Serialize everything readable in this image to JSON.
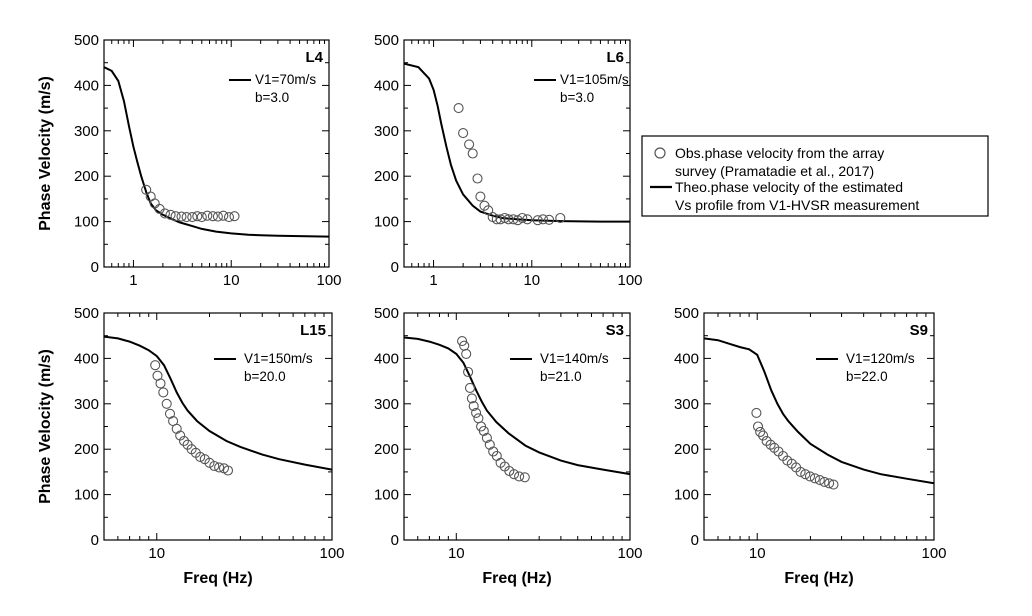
{
  "chart_data": [
    {
      "type": "line",
      "panel_label": "L4",
      "annotation": [
        "V1=70m/s",
        "b=3.0"
      ],
      "xlabel": "",
      "ylabel": "Phase Velocity (m/s)",
      "xscale": "log",
      "xlim": [
        0.5,
        100
      ],
      "ylim": [
        0,
        500
      ],
      "xticks": [
        1,
        10,
        100
      ],
      "xtick_labels": [
        "1",
        "10",
        "100"
      ],
      "yticks": [
        0,
        100,
        200,
        300,
        400,
        500
      ],
      "ytick_labels": [
        "0",
        "100",
        "200",
        "300",
        "400",
        "500"
      ],
      "series": [
        {
          "role": "theoretical",
          "style": "line",
          "x": [
            0.5,
            0.6,
            0.7,
            0.8,
            0.9,
            1.0,
            1.1,
            1.2,
            1.35,
            1.5,
            1.7,
            2.0,
            2.5,
            3,
            4,
            5,
            7,
            10,
            15,
            20,
            30,
            50,
            100
          ],
          "y": [
            440,
            432,
            410,
            365,
            310,
            265,
            230,
            200,
            165,
            140,
            125,
            115,
            105,
            98,
            90,
            84,
            78,
            74,
            71,
            70,
            69,
            68,
            67
          ]
        },
        {
          "role": "observed",
          "style": "markers",
          "x": [
            1.35,
            1.5,
            1.65,
            1.85,
            2.1,
            2.4,
            2.7,
            3.1,
            3.5,
            4,
            4.5,
            5,
            5.7,
            6.5,
            7.3,
            8.3,
            9.5,
            10.8
          ],
          "y": [
            170,
            155,
            140,
            128,
            118,
            115,
            112,
            111,
            110,
            110,
            112,
            110,
            113,
            112,
            111,
            113,
            110,
            112
          ]
        }
      ]
    },
    {
      "type": "line",
      "panel_label": "L6",
      "annotation": [
        "V1=105m/s",
        "b=3.0"
      ],
      "xlabel": "",
      "ylabel": "",
      "xscale": "log",
      "xlim": [
        0.5,
        100
      ],
      "ylim": [
        0,
        500
      ],
      "xticks": [
        1,
        10,
        100
      ],
      "xtick_labels": [
        "1",
        "10",
        "100"
      ],
      "yticks": [
        0,
        100,
        200,
        300,
        400,
        500
      ],
      "ytick_labels": [
        "0",
        "100",
        "200",
        "300",
        "400",
        "500"
      ],
      "series": [
        {
          "role": "theoretical",
          "style": "line",
          "x": [
            0.5,
            0.7,
            0.9,
            1.0,
            1.1,
            1.2,
            1.35,
            1.5,
            1.7,
            2.0,
            2.5,
            3,
            4,
            5,
            7,
            10,
            20,
            50,
            100
          ],
          "y": [
            448,
            440,
            415,
            390,
            355,
            315,
            265,
            225,
            190,
            160,
            135,
            122,
            113,
            108,
            105,
            103,
            101,
            100,
            100
          ]
        },
        {
          "role": "observed",
          "style": "markers",
          "x": [
            1.8,
            2.0,
            2.3,
            2.5,
            2.8,
            3.0,
            3.3,
            3.6,
            4.0,
            4.4,
            4.8,
            5.3,
            5.8,
            6.5,
            7.2,
            8.0,
            9.0,
            11.5,
            13.0,
            15.0,
            19.5
          ],
          "y": [
            350,
            295,
            270,
            250,
            195,
            155,
            135,
            125,
            110,
            105,
            105,
            108,
            105,
            105,
            103,
            108,
            105,
            103,
            105,
            104,
            108
          ]
        }
      ]
    },
    {
      "type": "line",
      "panel_label": "L15",
      "annotation": [
        "V1=150m/s",
        "b=20.0"
      ],
      "xlabel": "Freq (Hz)",
      "ylabel": "Phase Velocity (m/s)",
      "xscale": "log",
      "xlim": [
        5,
        100
      ],
      "ylim": [
        0,
        500
      ],
      "xticks": [
        10,
        100
      ],
      "xtick_labels": [
        "10",
        "100"
      ],
      "yticks": [
        0,
        100,
        200,
        300,
        400,
        500
      ],
      "ytick_labels": [
        "0",
        "100",
        "200",
        "300",
        "400",
        "500"
      ],
      "series": [
        {
          "role": "theoretical",
          "style": "line",
          "x": [
            5,
            6,
            7,
            8,
            9,
            10,
            11,
            12,
            13,
            14,
            15,
            17,
            20,
            25,
            30,
            40,
            50,
            70,
            100
          ],
          "y": [
            448,
            444,
            437,
            428,
            418,
            405,
            385,
            355,
            325,
            302,
            285,
            262,
            240,
            218,
            205,
            188,
            178,
            166,
            155
          ]
        },
        {
          "role": "observed",
          "style": "markers",
          "x": [
            9.8,
            10.1,
            10.5,
            10.9,
            11.4,
            11.9,
            12.4,
            13.0,
            13.6,
            14.3,
            15.0,
            15.8,
            16.7,
            17.7,
            18.8,
            20.0,
            21.3,
            22.7,
            24.2,
            25.5
          ],
          "y": [
            385,
            362,
            345,
            325,
            300,
            278,
            262,
            245,
            230,
            218,
            210,
            200,
            192,
            183,
            178,
            170,
            163,
            160,
            158,
            153
          ]
        }
      ]
    },
    {
      "type": "line",
      "panel_label": "S3",
      "annotation": [
        "V1=140m/s",
        "b=21.0"
      ],
      "xlabel": "Freq (Hz)",
      "ylabel": "",
      "xscale": "log",
      "xlim": [
        5,
        100
      ],
      "ylim": [
        0,
        500
      ],
      "xticks": [
        10,
        100
      ],
      "xtick_labels": [
        "10",
        "100"
      ],
      "yticks": [
        0,
        100,
        200,
        300,
        400,
        500
      ],
      "ytick_labels": [
        "0",
        "100",
        "200",
        "300",
        "400",
        "500"
      ],
      "series": [
        {
          "role": "theoretical",
          "style": "line",
          "x": [
            5,
            6,
            7,
            8,
            9,
            10,
            11,
            12,
            13,
            14,
            15,
            17,
            20,
            25,
            30,
            40,
            50,
            70,
            100
          ],
          "y": [
            446,
            443,
            437,
            430,
            422,
            410,
            390,
            360,
            330,
            305,
            285,
            260,
            235,
            208,
            193,
            175,
            165,
            155,
            145
          ]
        },
        {
          "role": "observed",
          "style": "markers",
          "x": [
            10.8,
            11.1,
            11.4,
            11.7,
            12.0,
            12.3,
            12.6,
            13.0,
            13.4,
            13.9,
            14.4,
            15.0,
            15.6,
            16.3,
            17.1,
            18.0,
            19.0,
            20.2,
            21.5,
            23.0,
            24.8
          ],
          "y": [
            438,
            428,
            410,
            370,
            335,
            312,
            295,
            280,
            268,
            250,
            240,
            225,
            210,
            195,
            185,
            170,
            162,
            152,
            145,
            140,
            138
          ]
        }
      ]
    },
    {
      "type": "line",
      "panel_label": "S9",
      "annotation": [
        "V1=120m/s",
        "b=22.0"
      ],
      "xlabel": "Freq (Hz)",
      "ylabel": "",
      "xscale": "log",
      "xlim": [
        5,
        100
      ],
      "ylim": [
        0,
        500
      ],
      "xticks": [
        10,
        100
      ],
      "xtick_labels": [
        "10",
        "100"
      ],
      "yticks": [
        0,
        100,
        200,
        300,
        400,
        500
      ],
      "ytick_labels": [
        "0",
        "100",
        "200",
        "300",
        "400",
        "500"
      ],
      "series": [
        {
          "role": "theoretical",
          "style": "line",
          "x": [
            5,
            6,
            7,
            8,
            9,
            10,
            11,
            12,
            13,
            14,
            15,
            17,
            20,
            25,
            30,
            40,
            50,
            70,
            100
          ],
          "y": [
            444,
            440,
            432,
            425,
            420,
            408,
            370,
            330,
            300,
            278,
            262,
            238,
            212,
            188,
            172,
            155,
            145,
            135,
            125
          ]
        },
        {
          "role": "observed",
          "style": "markers",
          "x": [
            9.9,
            10.1,
            10.4,
            10.8,
            11.3,
            11.9,
            12.5,
            13.2,
            14.0,
            14.8,
            15.7,
            16.6,
            17.6,
            18.7,
            19.9,
            21.2,
            22.6,
            24.0,
            25.5,
            27.0
          ],
          "y": [
            280,
            250,
            238,
            230,
            218,
            210,
            203,
            195,
            185,
            175,
            168,
            160,
            150,
            145,
            140,
            136,
            132,
            128,
            125,
            122
          ]
        }
      ]
    }
  ],
  "legend": {
    "entries": [
      {
        "marker": "circle",
        "text": [
          "Obs.phase velocity from the array",
          "survey (Pramatadie et al., 2017)"
        ]
      },
      {
        "marker": "line",
        "text": [
          "Theo.phase velocity of the estimated",
          "Vs profile from V1-HVSR measurement"
        ]
      }
    ]
  },
  "colors": {
    "line": "#000000",
    "marker_stroke": "#555555",
    "frame": "#000000"
  }
}
